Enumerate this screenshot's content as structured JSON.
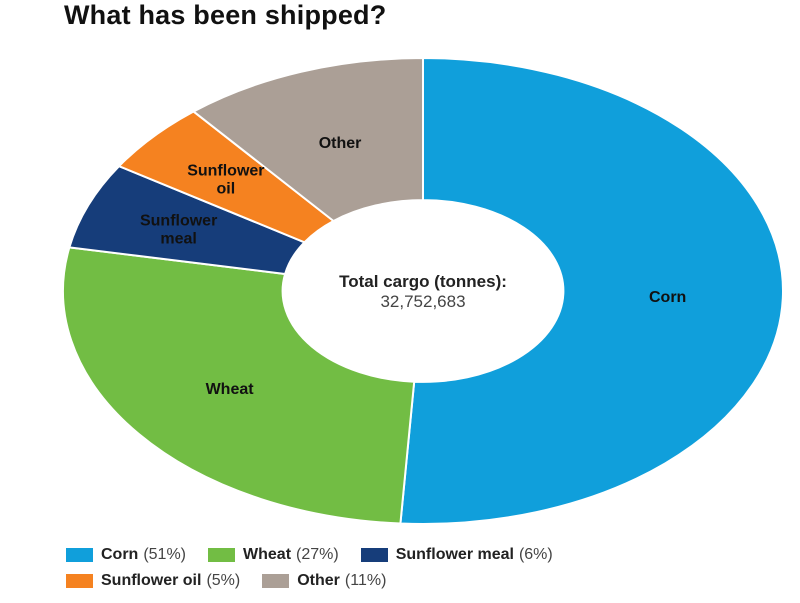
{
  "title": "What has been shipped?",
  "chart_data": {
    "type": "pie",
    "donut": true,
    "center_label": "Total cargo (tonnes):",
    "center_value": "32,752,683",
    "slices": [
      {
        "name": "Corn",
        "label_lines": [
          "Corn"
        ],
        "value": 51,
        "pct_text": "(51%)",
        "color": "#109fdb",
        "label_color": "#111111"
      },
      {
        "name": "Wheat",
        "label_lines": [
          "Wheat"
        ],
        "value": 27,
        "pct_text": "(27%)",
        "color": "#72bd44",
        "label_color": "#111111"
      },
      {
        "name": "Sunflower meal",
        "label_lines": [
          "Sunflower",
          "meal"
        ],
        "value": 6,
        "pct_text": "(6%)",
        "color": "#163d7a",
        "label_color": "#ffffff"
      },
      {
        "name": "Sunflower oil",
        "label_lines": [
          "Sunflower",
          "oil"
        ],
        "value": 5,
        "pct_text": "(5%)",
        "color": "#f58220",
        "label_color": "#111111"
      },
      {
        "name": "Other",
        "label_lines": [
          "Other"
        ],
        "value": 11,
        "pct_text": "(11%)",
        "color": "#ab9f96",
        "label_color": "#111111"
      }
    ]
  }
}
